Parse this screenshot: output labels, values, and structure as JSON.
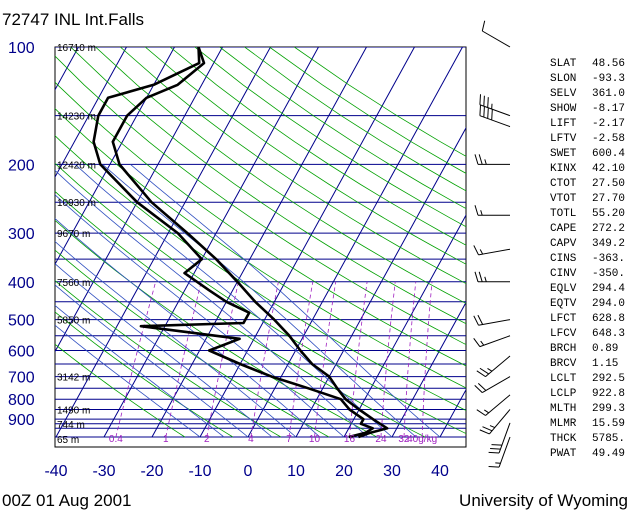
{
  "title": "72747 INL Int.Falls",
  "footer": {
    "left": "00Z 01 Aug 2001",
    "right": "University of Wyoming"
  },
  "colors": {
    "isobar": "#00008b",
    "isotherm": "#00008b",
    "dry_adiabat": "#00a000",
    "moist_adiabat": "#3050c0",
    "mixing_ratio": "#a020c0",
    "profile": "#000000",
    "label": "#00008b"
  },
  "chart_data": {
    "type": "skew-t",
    "title": "72747 INL Int.Falls",
    "x_axis": {
      "label": "",
      "ticks": [
        -40,
        -30,
        -20,
        -10,
        0,
        10,
        20,
        30,
        40
      ],
      "range": [
        -40,
        45
      ]
    },
    "y_axis": {
      "label": "",
      "scale": "log",
      "range": [
        1000,
        100
      ],
      "ticks": [
        100,
        200,
        300,
        400,
        500,
        600,
        700,
        800,
        900
      ]
    },
    "isobars": [
      100,
      150,
      200,
      250,
      300,
      350,
      400,
      450,
      500,
      550,
      600,
      650,
      700,
      750,
      800,
      850,
      900,
      925,
      950,
      1000
    ],
    "height_labels": [
      {
        "p": 100,
        "label": "16710 m"
      },
      {
        "p": 150,
        "label": "14230 m"
      },
      {
        "p": 200,
        "label": "12420 m"
      },
      {
        "p": 250,
        "label": "10930 m"
      },
      {
        "p": 300,
        "label": "9670 m"
      },
      {
        "p": 400,
        "label": "7560 m"
      },
      {
        "p": 500,
        "label": "5850 m"
      },
      {
        "p": 700,
        "label": "3142 m"
      },
      {
        "p": 850,
        "label": "1490 m"
      },
      {
        "p": 925,
        "label": "744 m"
      },
      {
        "p": 1000,
        "label": "65 m"
      }
    ],
    "mixing_ratio_labels": [
      "0.4",
      "1",
      "2",
      "4",
      "7",
      "10",
      "16",
      "24",
      "32",
      "40g/kg"
    ],
    "mixing_ratio_values": [
      0.4,
      1,
      2,
      4,
      7,
      10,
      16,
      24,
      32,
      40
    ],
    "temperature_profile": [
      {
        "p": 1000,
        "t": 23
      },
      {
        "p": 975,
        "t": 25
      },
      {
        "p": 950,
        "t": 28
      },
      {
        "p": 925,
        "t": 26
      },
      {
        "p": 900,
        "t": 24
      },
      {
        "p": 850,
        "t": 20
      },
      {
        "p": 800,
        "t": 16
      },
      {
        "p": 750,
        "t": 13
      },
      {
        "p": 700,
        "t": 10
      },
      {
        "p": 650,
        "t": 5
      },
      {
        "p": 600,
        "t": 1
      },
      {
        "p": 550,
        "t": -3
      },
      {
        "p": 500,
        "t": -8
      },
      {
        "p": 450,
        "t": -14
      },
      {
        "p": 400,
        "t": -20
      },
      {
        "p": 350,
        "t": -27
      },
      {
        "p": 300,
        "t": -36
      },
      {
        "p": 250,
        "t": -47
      },
      {
        "p": 200,
        "t": -58
      },
      {
        "p": 175,
        "t": -62
      },
      {
        "p": 150,
        "t": -62
      },
      {
        "p": 135,
        "t": -60
      },
      {
        "p": 125,
        "t": -55
      },
      {
        "p": 110,
        "t": -52
      },
      {
        "p": 100,
        "t": -55
      }
    ],
    "dewpoint_profile": [
      {
        "p": 1000,
        "t": 21
      },
      {
        "p": 975,
        "t": 24
      },
      {
        "p": 950,
        "t": 25
      },
      {
        "p": 925,
        "t": 22
      },
      {
        "p": 900,
        "t": 22
      },
      {
        "p": 850,
        "t": 18
      },
      {
        "p": 800,
        "t": 15
      },
      {
        "p": 750,
        "t": 7
      },
      {
        "p": 700,
        "t": -2
      },
      {
        "p": 650,
        "t": -10
      },
      {
        "p": 600,
        "t": -18
      },
      {
        "p": 560,
        "t": -13
      },
      {
        "p": 520,
        "t": -35
      },
      {
        "p": 510,
        "t": -14
      },
      {
        "p": 480,
        "t": -14
      },
      {
        "p": 450,
        "t": -20
      },
      {
        "p": 420,
        "t": -25
      },
      {
        "p": 380,
        "t": -32
      },
      {
        "p": 350,
        "t": -30
      },
      {
        "p": 300,
        "t": -38
      },
      {
        "p": 250,
        "t": -50
      },
      {
        "p": 200,
        "t": -62
      },
      {
        "p": 175,
        "t": -66
      },
      {
        "p": 150,
        "t": -68
      },
      {
        "p": 135,
        "t": -68
      },
      {
        "p": 125,
        "t": -60
      },
      {
        "p": 110,
        "t": -53
      },
      {
        "p": 100,
        "t": -55
      }
    ],
    "wind_barbs": [
      {
        "p": 100,
        "dir": 300,
        "kt": 10
      },
      {
        "p": 150,
        "dir": 290,
        "kt": 35
      },
      {
        "p": 160,
        "dir": 290,
        "kt": 40
      },
      {
        "p": 200,
        "dir": 270,
        "kt": 25
      },
      {
        "p": 270,
        "dir": 270,
        "kt": 15
      },
      {
        "p": 330,
        "dir": 260,
        "kt": 15
      },
      {
        "p": 400,
        "dir": 270,
        "kt": 25
      },
      {
        "p": 500,
        "dir": 260,
        "kt": 20
      },
      {
        "p": 550,
        "dir": 250,
        "kt": 15
      },
      {
        "p": 620,
        "dir": 230,
        "kt": 25
      },
      {
        "p": 700,
        "dir": 240,
        "kt": 20
      },
      {
        "p": 780,
        "dir": 230,
        "kt": 15
      },
      {
        "p": 850,
        "dir": 220,
        "kt": 25
      },
      {
        "p": 920,
        "dir": 200,
        "kt": 30
      },
      {
        "p": 1000,
        "dir": 200,
        "kt": 15
      }
    ]
  },
  "station_indices": [
    {
      "name": "SLAT",
      "value": "48.56"
    },
    {
      "name": "SLON",
      "value": "-93.3"
    },
    {
      "name": "SELV",
      "value": "361.0"
    },
    {
      "name": "SHOW",
      "value": "-8.17"
    },
    {
      "name": "LIFT",
      "value": "-2.17"
    },
    {
      "name": "LFTV",
      "value": "-2.58"
    },
    {
      "name": "SWET",
      "value": "600.4"
    },
    {
      "name": "KINX",
      "value": "42.10"
    },
    {
      "name": "CTOT",
      "value": "27.50"
    },
    {
      "name": "VTOT",
      "value": "27.70"
    },
    {
      "name": "TOTL",
      "value": "55.20"
    },
    {
      "name": "CAPE",
      "value": "272.2"
    },
    {
      "name": "CAPV",
      "value": "349.2"
    },
    {
      "name": "CINS",
      "value": "-363."
    },
    {
      "name": "CINV",
      "value": "-350."
    },
    {
      "name": "EQLV",
      "value": "294.4"
    },
    {
      "name": "EQTV",
      "value": "294.0"
    },
    {
      "name": "LFCT",
      "value": "628.8"
    },
    {
      "name": "LFCV",
      "value": "648.3"
    },
    {
      "name": "BRCH",
      "value": "0.89"
    },
    {
      "name": "BRCV",
      "value": "1.15"
    },
    {
      "name": "LCLT",
      "value": "292.5"
    },
    {
      "name": "LCLP",
      "value": "922.8"
    },
    {
      "name": "MLTH",
      "value": "299.3"
    },
    {
      "name": "MLMR",
      "value": "15.59"
    },
    {
      "name": "THCK",
      "value": "5785."
    },
    {
      "name": "PWAT",
      "value": "49.49"
    }
  ]
}
